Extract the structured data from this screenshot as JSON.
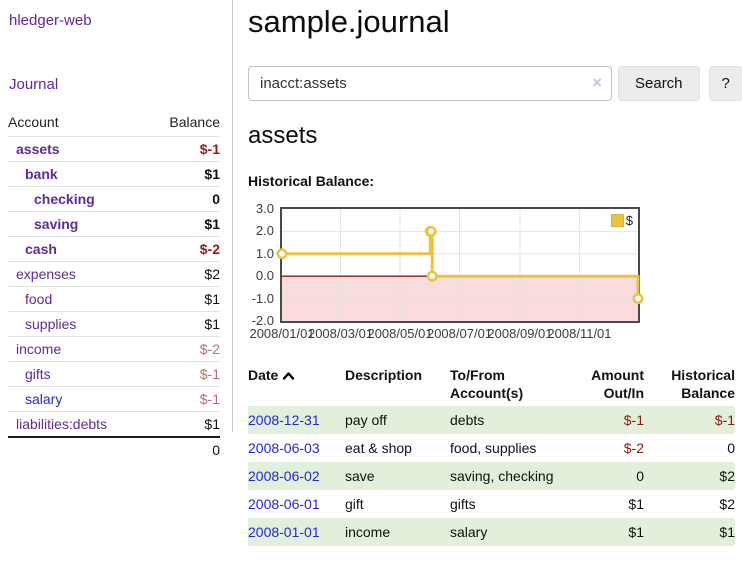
{
  "app": {
    "brand": "hledger-web",
    "nav_journal": "Journal"
  },
  "sidebar": {
    "header": {
      "account": "Account",
      "balance": "Balance"
    },
    "rows": [
      {
        "name": "assets",
        "depth": 1,
        "bold": true,
        "balance": "$-1",
        "balance_class": "neg-strong"
      },
      {
        "name": "bank",
        "depth": 2,
        "bold": true,
        "balance": "$1",
        "balance_class": "pos"
      },
      {
        "name": "checking",
        "depth": 3,
        "bold": true,
        "balance": "0",
        "balance_class": "pos"
      },
      {
        "name": "saving",
        "depth": 3,
        "bold": true,
        "balance": "$1",
        "balance_class": "pos"
      },
      {
        "name": "cash",
        "depth": 2,
        "bold": true,
        "balance": "$-2",
        "balance_class": "neg-strong"
      },
      {
        "name": "expenses",
        "depth": 1,
        "bold": false,
        "balance": "$2",
        "balance_class": "pos"
      },
      {
        "name": "food",
        "depth": 2,
        "bold": false,
        "balance": "$1",
        "balance_class": "pos"
      },
      {
        "name": "supplies",
        "depth": 2,
        "bold": false,
        "balance": "$1",
        "balance_class": "pos"
      },
      {
        "name": "income",
        "depth": 1,
        "bold": false,
        "balance": "$-2",
        "balance_class": "neg-soft"
      },
      {
        "name": "gifts",
        "depth": 2,
        "bold": false,
        "balance": "$-1",
        "balance_class": "neg-soft"
      },
      {
        "name": "salary",
        "depth": 2,
        "bold": false,
        "balance": "$-1",
        "balance_class": "neg-soft",
        "link_color": "blue"
      },
      {
        "name": "liabilities:debts",
        "depth": 1,
        "bold": false,
        "balance": "$1",
        "balance_class": "pos"
      }
    ],
    "total": "0"
  },
  "header": {
    "title": "sample.journal"
  },
  "search": {
    "value": "inacct:assets",
    "clear_icon": "×",
    "button_label": "Search",
    "help_label": "?"
  },
  "account_page": {
    "title": "assets",
    "chart_label": "Historical Balance:"
  },
  "chart_data": {
    "type": "line",
    "step": true,
    "series": [
      {
        "name": "$",
        "color": "#EDC240",
        "points": [
          [
            "2008-01-01",
            1
          ],
          [
            "2008-06-01",
            2
          ],
          [
            "2008-06-02",
            2
          ],
          [
            "2008-06-03",
            0
          ],
          [
            "2008-12-31",
            -1
          ]
        ]
      }
    ],
    "xrange": [
      "2008-01-01",
      "2008-12-31"
    ],
    "ylim": [
      -2,
      3
    ],
    "yticks": [
      "3.0",
      "2.0",
      "1.0",
      "0.0",
      "-1.0",
      "-2.0"
    ],
    "xticks": [
      "2008/01/01",
      "2008/03/01",
      "2008/05/01",
      "2008/07/01",
      "2008/09/01",
      "2008/11/01"
    ],
    "legend": {
      "label": "$",
      "position": "top-right"
    },
    "colors": {
      "negative_region": "#fbdcdc",
      "zero_line": "#8b1c1c",
      "grid": "#e2e2e2",
      "border": "#4a4a4a"
    }
  },
  "register": {
    "columns": {
      "date": "Date",
      "description": "Description",
      "accounts": "To/From Account(s)",
      "amount": "Amount Out/In",
      "balance": "Historical Balance"
    },
    "rows": [
      {
        "date": "2008-12-31",
        "description": "pay off",
        "accounts": "debts",
        "amount": "$-1",
        "amount_neg": true,
        "balance": "$-1",
        "balance_neg": true
      },
      {
        "date": "2008-06-03",
        "description": "eat & shop",
        "accounts": "food, supplies",
        "amount": "$-2",
        "amount_neg": true,
        "balance": "0",
        "balance_neg": false
      },
      {
        "date": "2008-06-02",
        "description": "save",
        "accounts": "saving, checking",
        "amount": "0",
        "amount_neg": false,
        "balance": "$2",
        "balance_neg": false
      },
      {
        "date": "2008-06-01",
        "description": "gift",
        "accounts": "gifts",
        "amount": "$1",
        "amount_neg": false,
        "balance": "$2",
        "balance_neg": false
      },
      {
        "date": "2008-01-01",
        "description": "income",
        "accounts": "salary",
        "amount": "$1",
        "amount_neg": false,
        "balance": "$1",
        "balance_neg": false
      }
    ]
  }
}
